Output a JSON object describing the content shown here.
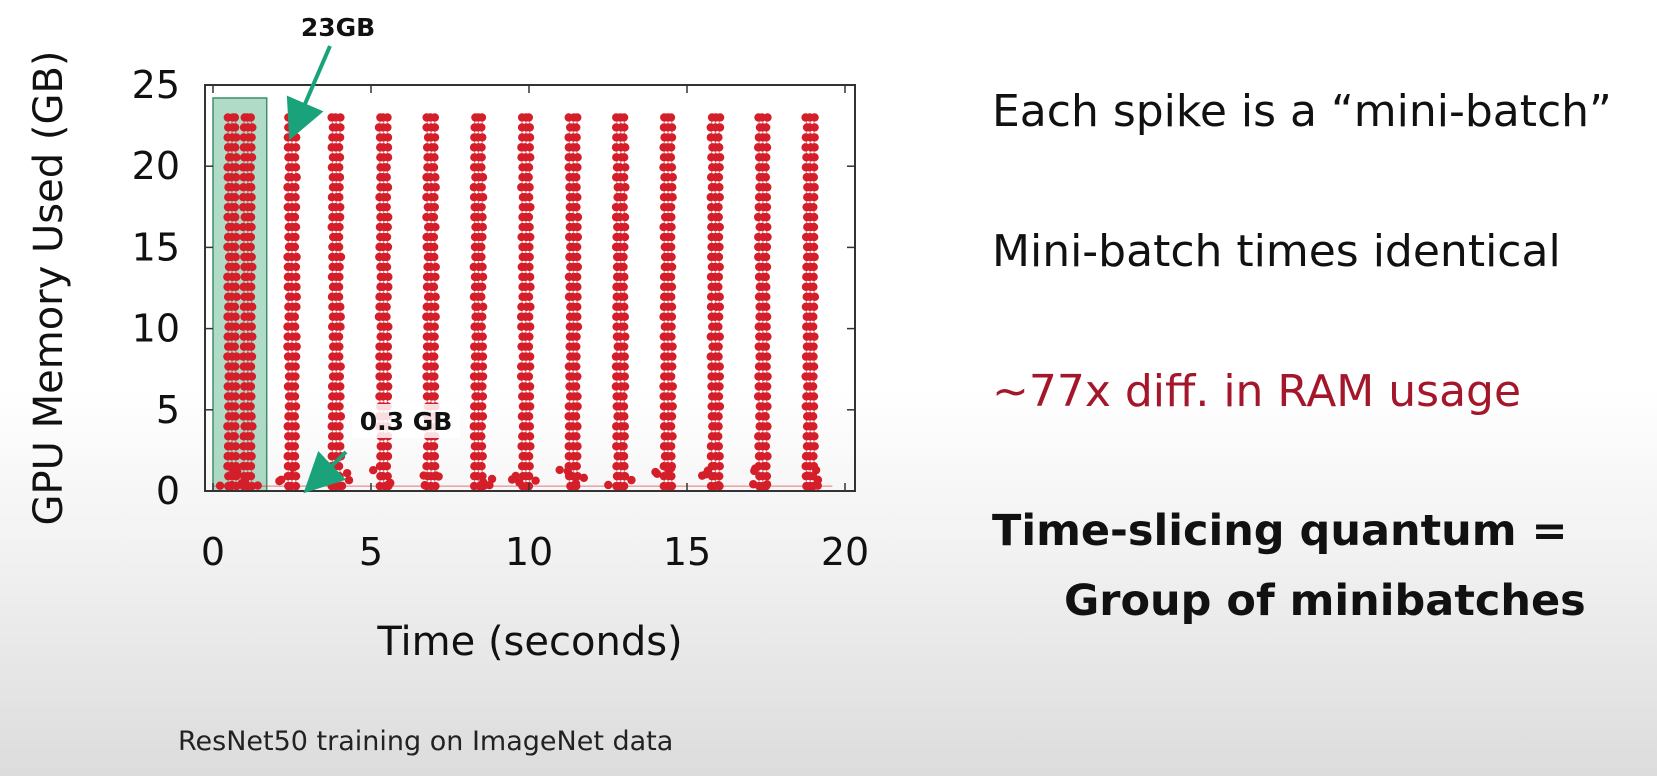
{
  "chart_data": {
    "type": "scatter",
    "xlabel": "Time (seconds)",
    "ylabel": "GPU Memory Used (GB)",
    "xlim": [
      0,
      20
    ],
    "ylim": [
      0,
      25
    ],
    "xticks": [
      0,
      5,
      10,
      15,
      20
    ],
    "yticks": [
      0,
      5,
      10,
      15,
      20,
      25
    ],
    "grid": false,
    "series_color": "#d41f2a",
    "highlight_color": "#6fbf99",
    "highlight_x_range": [
      0,
      1.7
    ],
    "spikes": [
      {
        "x": 0.6,
        "peak": 23
      },
      {
        "x": 1.1,
        "peak": 23
      },
      {
        "x": 2.5,
        "peak": 23
      },
      {
        "x": 3.9,
        "peak": 23
      },
      {
        "x": 5.4,
        "peak": 23
      },
      {
        "x": 6.9,
        "peak": 23
      },
      {
        "x": 8.4,
        "peak": 23
      },
      {
        "x": 9.9,
        "peak": 23
      },
      {
        "x": 11.4,
        "peak": 23
      },
      {
        "x": 12.9,
        "peak": 23
      },
      {
        "x": 14.4,
        "peak": 23
      },
      {
        "x": 15.9,
        "peak": 23
      },
      {
        "x": 17.4,
        "peak": 23
      },
      {
        "x": 18.9,
        "peak": 23
      }
    ],
    "min_value": 0.3,
    "max_value": 23,
    "annotations": [
      {
        "text": "23GB",
        "x": 2.3,
        "y": 23
      },
      {
        "text": "0.3 GB",
        "x": 3.1,
        "y": 0.3
      }
    ]
  },
  "caption": "ResNet50 training on ImageNet data",
  "bullets": {
    "b1": "Each spike is a “mini-batch”",
    "b2": "Mini-batch times identical",
    "b3": "~77x diff. in RAM usage",
    "b4": "Time-slicing quantum =",
    "b5": "Group of minibatches"
  }
}
